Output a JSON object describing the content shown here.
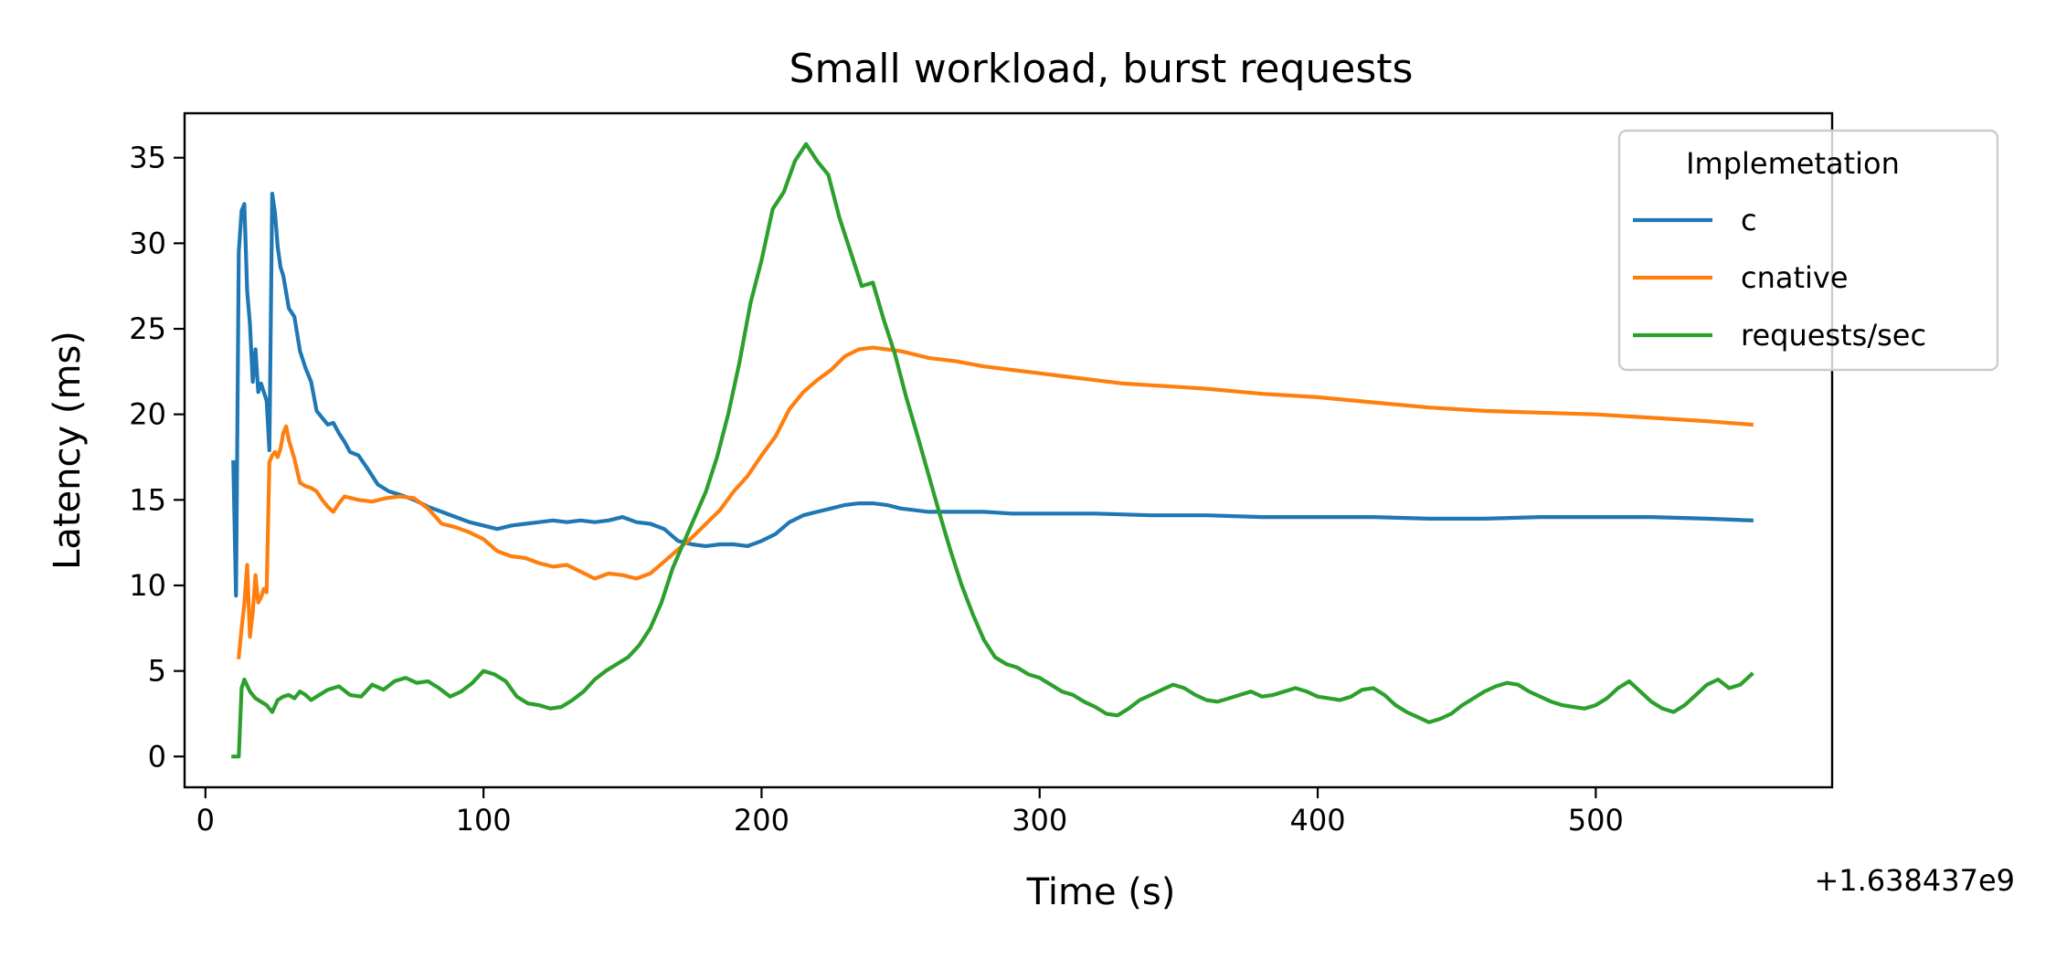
{
  "chart_data": {
    "type": "line",
    "title": "Small workload, burst requests",
    "xlabel": "Time (s)",
    "ylabel": "Latency (ms)",
    "x_offset_label": "+1.638437e9",
    "xlim": [
      -7.5,
      585
    ],
    "ylim": [
      -1.8,
      37.6
    ],
    "xticks": [
      0,
      100,
      200,
      300,
      400,
      500
    ],
    "yticks": [
      0,
      5,
      10,
      15,
      20,
      25,
      30,
      35
    ],
    "grid": false,
    "legend": {
      "title": "Implemetation",
      "position": "top-right"
    },
    "series": [
      {
        "name": "c",
        "color": "#1f77b4",
        "points": [
          [
            10,
            17.2
          ],
          [
            11,
            9.4
          ],
          [
            12,
            29.5
          ],
          [
            13,
            31.9
          ],
          [
            14,
            32.3
          ],
          [
            15,
            27.2
          ],
          [
            16,
            25.3
          ],
          [
            17,
            21.9
          ],
          [
            18,
            23.8
          ],
          [
            19,
            21.3
          ],
          [
            20,
            21.8
          ],
          [
            21,
            21.3
          ],
          [
            22,
            20.8
          ],
          [
            23,
            17.9
          ],
          [
            24,
            32.9
          ],
          [
            25,
            31.8
          ],
          [
            26,
            29.8
          ],
          [
            27,
            28.6
          ],
          [
            28,
            28.1
          ],
          [
            30,
            26.2
          ],
          [
            32,
            25.7
          ],
          [
            34,
            23.7
          ],
          [
            36,
            22.7
          ],
          [
            38,
            21.9
          ],
          [
            40,
            20.2
          ],
          [
            42,
            19.8
          ],
          [
            44,
            19.4
          ],
          [
            46,
            19.5
          ],
          [
            48,
            18.9
          ],
          [
            50,
            18.4
          ],
          [
            52,
            17.8
          ],
          [
            55,
            17.6
          ],
          [
            58,
            16.9
          ],
          [
            62,
            15.9
          ],
          [
            66,
            15.5
          ],
          [
            70,
            15.3
          ],
          [
            75,
            15.0
          ],
          [
            80,
            14.6
          ],
          [
            85,
            14.3
          ],
          [
            90,
            14.0
          ],
          [
            95,
            13.7
          ],
          [
            100,
            13.5
          ],
          [
            105,
            13.3
          ],
          [
            110,
            13.5
          ],
          [
            115,
            13.6
          ],
          [
            120,
            13.7
          ],
          [
            125,
            13.8
          ],
          [
            130,
            13.7
          ],
          [
            135,
            13.8
          ],
          [
            140,
            13.7
          ],
          [
            145,
            13.8
          ],
          [
            150,
            14.0
          ],
          [
            155,
            13.7
          ],
          [
            160,
            13.6
          ],
          [
            165,
            13.3
          ],
          [
            170,
            12.6
          ],
          [
            175,
            12.4
          ],
          [
            180,
            12.3
          ],
          [
            185,
            12.4
          ],
          [
            190,
            12.4
          ],
          [
            195,
            12.3
          ],
          [
            200,
            12.6
          ],
          [
            205,
            13.0
          ],
          [
            210,
            13.7
          ],
          [
            215,
            14.1
          ],
          [
            220,
            14.3
          ],
          [
            225,
            14.5
          ],
          [
            230,
            14.7
          ],
          [
            235,
            14.8
          ],
          [
            240,
            14.8
          ],
          [
            245,
            14.7
          ],
          [
            250,
            14.5
          ],
          [
            255,
            14.4
          ],
          [
            260,
            14.3
          ],
          [
            270,
            14.3
          ],
          [
            280,
            14.3
          ],
          [
            290,
            14.2
          ],
          [
            300,
            14.2
          ],
          [
            320,
            14.2
          ],
          [
            340,
            14.1
          ],
          [
            360,
            14.1
          ],
          [
            380,
            14.0
          ],
          [
            400,
            14.0
          ],
          [
            420,
            14.0
          ],
          [
            440,
            13.9
          ],
          [
            460,
            13.9
          ],
          [
            480,
            14.0
          ],
          [
            500,
            14.0
          ],
          [
            520,
            14.0
          ],
          [
            540,
            13.9
          ],
          [
            556,
            13.8
          ]
        ]
      },
      {
        "name": "cnative",
        "color": "#ff7f0e",
        "points": [
          [
            12,
            5.8
          ],
          [
            13,
            7.5
          ],
          [
            14,
            8.9
          ],
          [
            15,
            11.2
          ],
          [
            16,
            7.0
          ],
          [
            17,
            8.4
          ],
          [
            18,
            10.6
          ],
          [
            19,
            9.0
          ],
          [
            20,
            9.3
          ],
          [
            21,
            9.8
          ],
          [
            22,
            9.6
          ],
          [
            23,
            17.2
          ],
          [
            24,
            17.6
          ],
          [
            25,
            17.8
          ],
          [
            26,
            17.5
          ],
          [
            27,
            18.0
          ],
          [
            28,
            18.9
          ],
          [
            29,
            19.3
          ],
          [
            30,
            18.5
          ],
          [
            32,
            17.4
          ],
          [
            34,
            16.0
          ],
          [
            36,
            15.8
          ],
          [
            38,
            15.7
          ],
          [
            40,
            15.5
          ],
          [
            42,
            15.0
          ],
          [
            44,
            14.6
          ],
          [
            46,
            14.3
          ],
          [
            48,
            14.8
          ],
          [
            50,
            15.2
          ],
          [
            55,
            15.0
          ],
          [
            60,
            14.9
          ],
          [
            65,
            15.1
          ],
          [
            70,
            15.2
          ],
          [
            75,
            15.1
          ],
          [
            80,
            14.5
          ],
          [
            85,
            13.6
          ],
          [
            90,
            13.4
          ],
          [
            95,
            13.1
          ],
          [
            100,
            12.7
          ],
          [
            105,
            12.0
          ],
          [
            110,
            11.7
          ],
          [
            115,
            11.6
          ],
          [
            120,
            11.3
          ],
          [
            125,
            11.1
          ],
          [
            130,
            11.2
          ],
          [
            135,
            10.8
          ],
          [
            140,
            10.4
          ],
          [
            145,
            10.7
          ],
          [
            150,
            10.6
          ],
          [
            155,
            10.4
          ],
          [
            160,
            10.7
          ],
          [
            165,
            11.4
          ],
          [
            170,
            12.1
          ],
          [
            175,
            12.8
          ],
          [
            180,
            13.6
          ],
          [
            185,
            14.4
          ],
          [
            190,
            15.5
          ],
          [
            195,
            16.4
          ],
          [
            200,
            17.6
          ],
          [
            205,
            18.7
          ],
          [
            210,
            20.3
          ],
          [
            215,
            21.3
          ],
          [
            220,
            22.0
          ],
          [
            225,
            22.6
          ],
          [
            230,
            23.4
          ],
          [
            235,
            23.8
          ],
          [
            240,
            23.9
          ],
          [
            245,
            23.8
          ],
          [
            250,
            23.7
          ],
          [
            255,
            23.5
          ],
          [
            260,
            23.3
          ],
          [
            270,
            23.1
          ],
          [
            280,
            22.8
          ],
          [
            290,
            22.6
          ],
          [
            300,
            22.4
          ],
          [
            310,
            22.2
          ],
          [
            320,
            22.0
          ],
          [
            330,
            21.8
          ],
          [
            340,
            21.7
          ],
          [
            350,
            21.6
          ],
          [
            360,
            21.5
          ],
          [
            380,
            21.2
          ],
          [
            400,
            21.0
          ],
          [
            420,
            20.7
          ],
          [
            440,
            20.4
          ],
          [
            460,
            20.2
          ],
          [
            480,
            20.1
          ],
          [
            500,
            20.0
          ],
          [
            520,
            19.8
          ],
          [
            540,
            19.6
          ],
          [
            556,
            19.4
          ]
        ]
      },
      {
        "name": "requests/sec",
        "color": "#2ca02c",
        "points": [
          [
            10,
            0
          ],
          [
            12,
            0
          ],
          [
            13,
            4.0
          ],
          [
            14,
            4.5
          ],
          [
            16,
            3.8
          ],
          [
            18,
            3.4
          ],
          [
            20,
            3.2
          ],
          [
            22,
            3.0
          ],
          [
            24,
            2.6
          ],
          [
            26,
            3.3
          ],
          [
            28,
            3.5
          ],
          [
            30,
            3.6
          ],
          [
            32,
            3.4
          ],
          [
            34,
            3.8
          ],
          [
            36,
            3.6
          ],
          [
            38,
            3.3
          ],
          [
            40,
            3.5
          ],
          [
            44,
            3.9
          ],
          [
            48,
            4.1
          ],
          [
            52,
            3.6
          ],
          [
            56,
            3.5
          ],
          [
            60,
            4.2
          ],
          [
            64,
            3.9
          ],
          [
            68,
            4.4
          ],
          [
            72,
            4.6
          ],
          [
            76,
            4.3
          ],
          [
            80,
            4.4
          ],
          [
            84,
            4.0
          ],
          [
            88,
            3.5
          ],
          [
            92,
            3.8
          ],
          [
            96,
            4.3
          ],
          [
            100,
            5.0
          ],
          [
            104,
            4.8
          ],
          [
            108,
            4.4
          ],
          [
            112,
            3.5
          ],
          [
            116,
            3.1
          ],
          [
            120,
            3.0
          ],
          [
            124,
            2.8
          ],
          [
            128,
            2.9
          ],
          [
            132,
            3.3
          ],
          [
            136,
            3.8
          ],
          [
            140,
            4.5
          ],
          [
            144,
            5.0
          ],
          [
            148,
            5.4
          ],
          [
            152,
            5.8
          ],
          [
            156,
            6.5
          ],
          [
            160,
            7.5
          ],
          [
            164,
            9.0
          ],
          [
            168,
            11.0
          ],
          [
            172,
            12.5
          ],
          [
            176,
            14.0
          ],
          [
            180,
            15.5
          ],
          [
            184,
            17.5
          ],
          [
            188,
            20.0
          ],
          [
            192,
            23.0
          ],
          [
            196,
            26.5
          ],
          [
            200,
            29.0
          ],
          [
            204,
            32.0
          ],
          [
            208,
            33.0
          ],
          [
            212,
            34.8
          ],
          [
            216,
            35.8
          ],
          [
            220,
            34.8
          ],
          [
            224,
            34.0
          ],
          [
            228,
            31.5
          ],
          [
            232,
            29.5
          ],
          [
            236,
            27.5
          ],
          [
            240,
            27.7
          ],
          [
            244,
            25.5
          ],
          [
            248,
            23.5
          ],
          [
            252,
            21.0
          ],
          [
            256,
            18.8
          ],
          [
            260,
            16.5
          ],
          [
            264,
            14.2
          ],
          [
            268,
            12.0
          ],
          [
            272,
            10.0
          ],
          [
            276,
            8.3
          ],
          [
            280,
            6.8
          ],
          [
            284,
            5.8
          ],
          [
            288,
            5.4
          ],
          [
            292,
            5.2
          ],
          [
            296,
            4.8
          ],
          [
            300,
            4.6
          ],
          [
            304,
            4.2
          ],
          [
            308,
            3.8
          ],
          [
            312,
            3.6
          ],
          [
            316,
            3.2
          ],
          [
            320,
            2.9
          ],
          [
            324,
            2.5
          ],
          [
            328,
            2.4
          ],
          [
            332,
            2.8
          ],
          [
            336,
            3.3
          ],
          [
            340,
            3.6
          ],
          [
            344,
            3.9
          ],
          [
            348,
            4.2
          ],
          [
            352,
            4.0
          ],
          [
            356,
            3.6
          ],
          [
            360,
            3.3
          ],
          [
            364,
            3.2
          ],
          [
            368,
            3.4
          ],
          [
            372,
            3.6
          ],
          [
            376,
            3.8
          ],
          [
            380,
            3.5
          ],
          [
            384,
            3.6
          ],
          [
            388,
            3.8
          ],
          [
            392,
            4.0
          ],
          [
            396,
            3.8
          ],
          [
            400,
            3.5
          ],
          [
            404,
            3.4
          ],
          [
            408,
            3.3
          ],
          [
            412,
            3.5
          ],
          [
            416,
            3.9
          ],
          [
            420,
            4.0
          ],
          [
            424,
            3.6
          ],
          [
            428,
            3.0
          ],
          [
            432,
            2.6
          ],
          [
            436,
            2.3
          ],
          [
            440,
            2.0
          ],
          [
            444,
            2.2
          ],
          [
            448,
            2.5
          ],
          [
            452,
            3.0
          ],
          [
            456,
            3.4
          ],
          [
            460,
            3.8
          ],
          [
            464,
            4.1
          ],
          [
            468,
            4.3
          ],
          [
            472,
            4.2
          ],
          [
            476,
            3.8
          ],
          [
            480,
            3.5
          ],
          [
            484,
            3.2
          ],
          [
            488,
            3.0
          ],
          [
            492,
            2.9
          ],
          [
            496,
            2.8
          ],
          [
            500,
            3.0
          ],
          [
            504,
            3.4
          ],
          [
            508,
            4.0
          ],
          [
            512,
            4.4
          ],
          [
            516,
            3.8
          ],
          [
            520,
            3.2
          ],
          [
            524,
            2.8
          ],
          [
            528,
            2.6
          ],
          [
            532,
            3.0
          ],
          [
            536,
            3.6
          ],
          [
            540,
            4.2
          ],
          [
            544,
            4.5
          ],
          [
            548,
            4.0
          ],
          [
            552,
            4.2
          ],
          [
            556,
            4.8
          ]
        ]
      }
    ]
  }
}
